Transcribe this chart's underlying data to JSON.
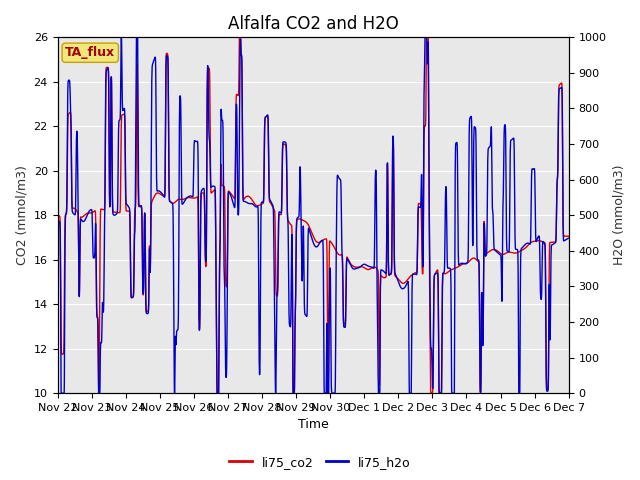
{
  "title": "Alfalfa CO2 and H2O",
  "xlabel": "Time",
  "ylabel_left": "CO2 (mmol/m3)",
  "ylabel_right": "H2O (mmol/m3)",
  "ylim_left": [
    10,
    26
  ],
  "ylim_right": [
    0,
    1000
  ],
  "yticks_left": [
    10,
    12,
    14,
    16,
    18,
    20,
    22,
    24,
    26
  ],
  "yticks_right": [
    0,
    100,
    200,
    300,
    400,
    500,
    600,
    700,
    800,
    900,
    1000
  ],
  "color_co2": "#dd0000",
  "color_h2o": "#0000cc",
  "label_co2": "li75_co2",
  "label_h2o": "li75_h2o",
  "annotation_text": "TA_flux",
  "annotation_bg": "#f0e87a",
  "annotation_border": "#c8a000",
  "bg_color": "#e8e8e8",
  "fig_bg": "#ffffff",
  "linewidth": 1.0,
  "n_days": 15,
  "n_points": 3000,
  "seed": 7,
  "tick_labels": [
    "Nov 22",
    "Nov 23",
    "Nov 24",
    "Nov 25",
    "Nov 26",
    "Nov 27",
    "Nov 28",
    "Nov 29",
    "Nov 30",
    "Dec 1",
    "Dec 2",
    "Dec 3",
    "Dec 4",
    "Dec 5",
    "Dec 6",
    "Dec 7"
  ],
  "title_fontsize": 12,
  "label_fontsize": 9,
  "tick_fontsize": 8,
  "legend_fontsize": 9
}
